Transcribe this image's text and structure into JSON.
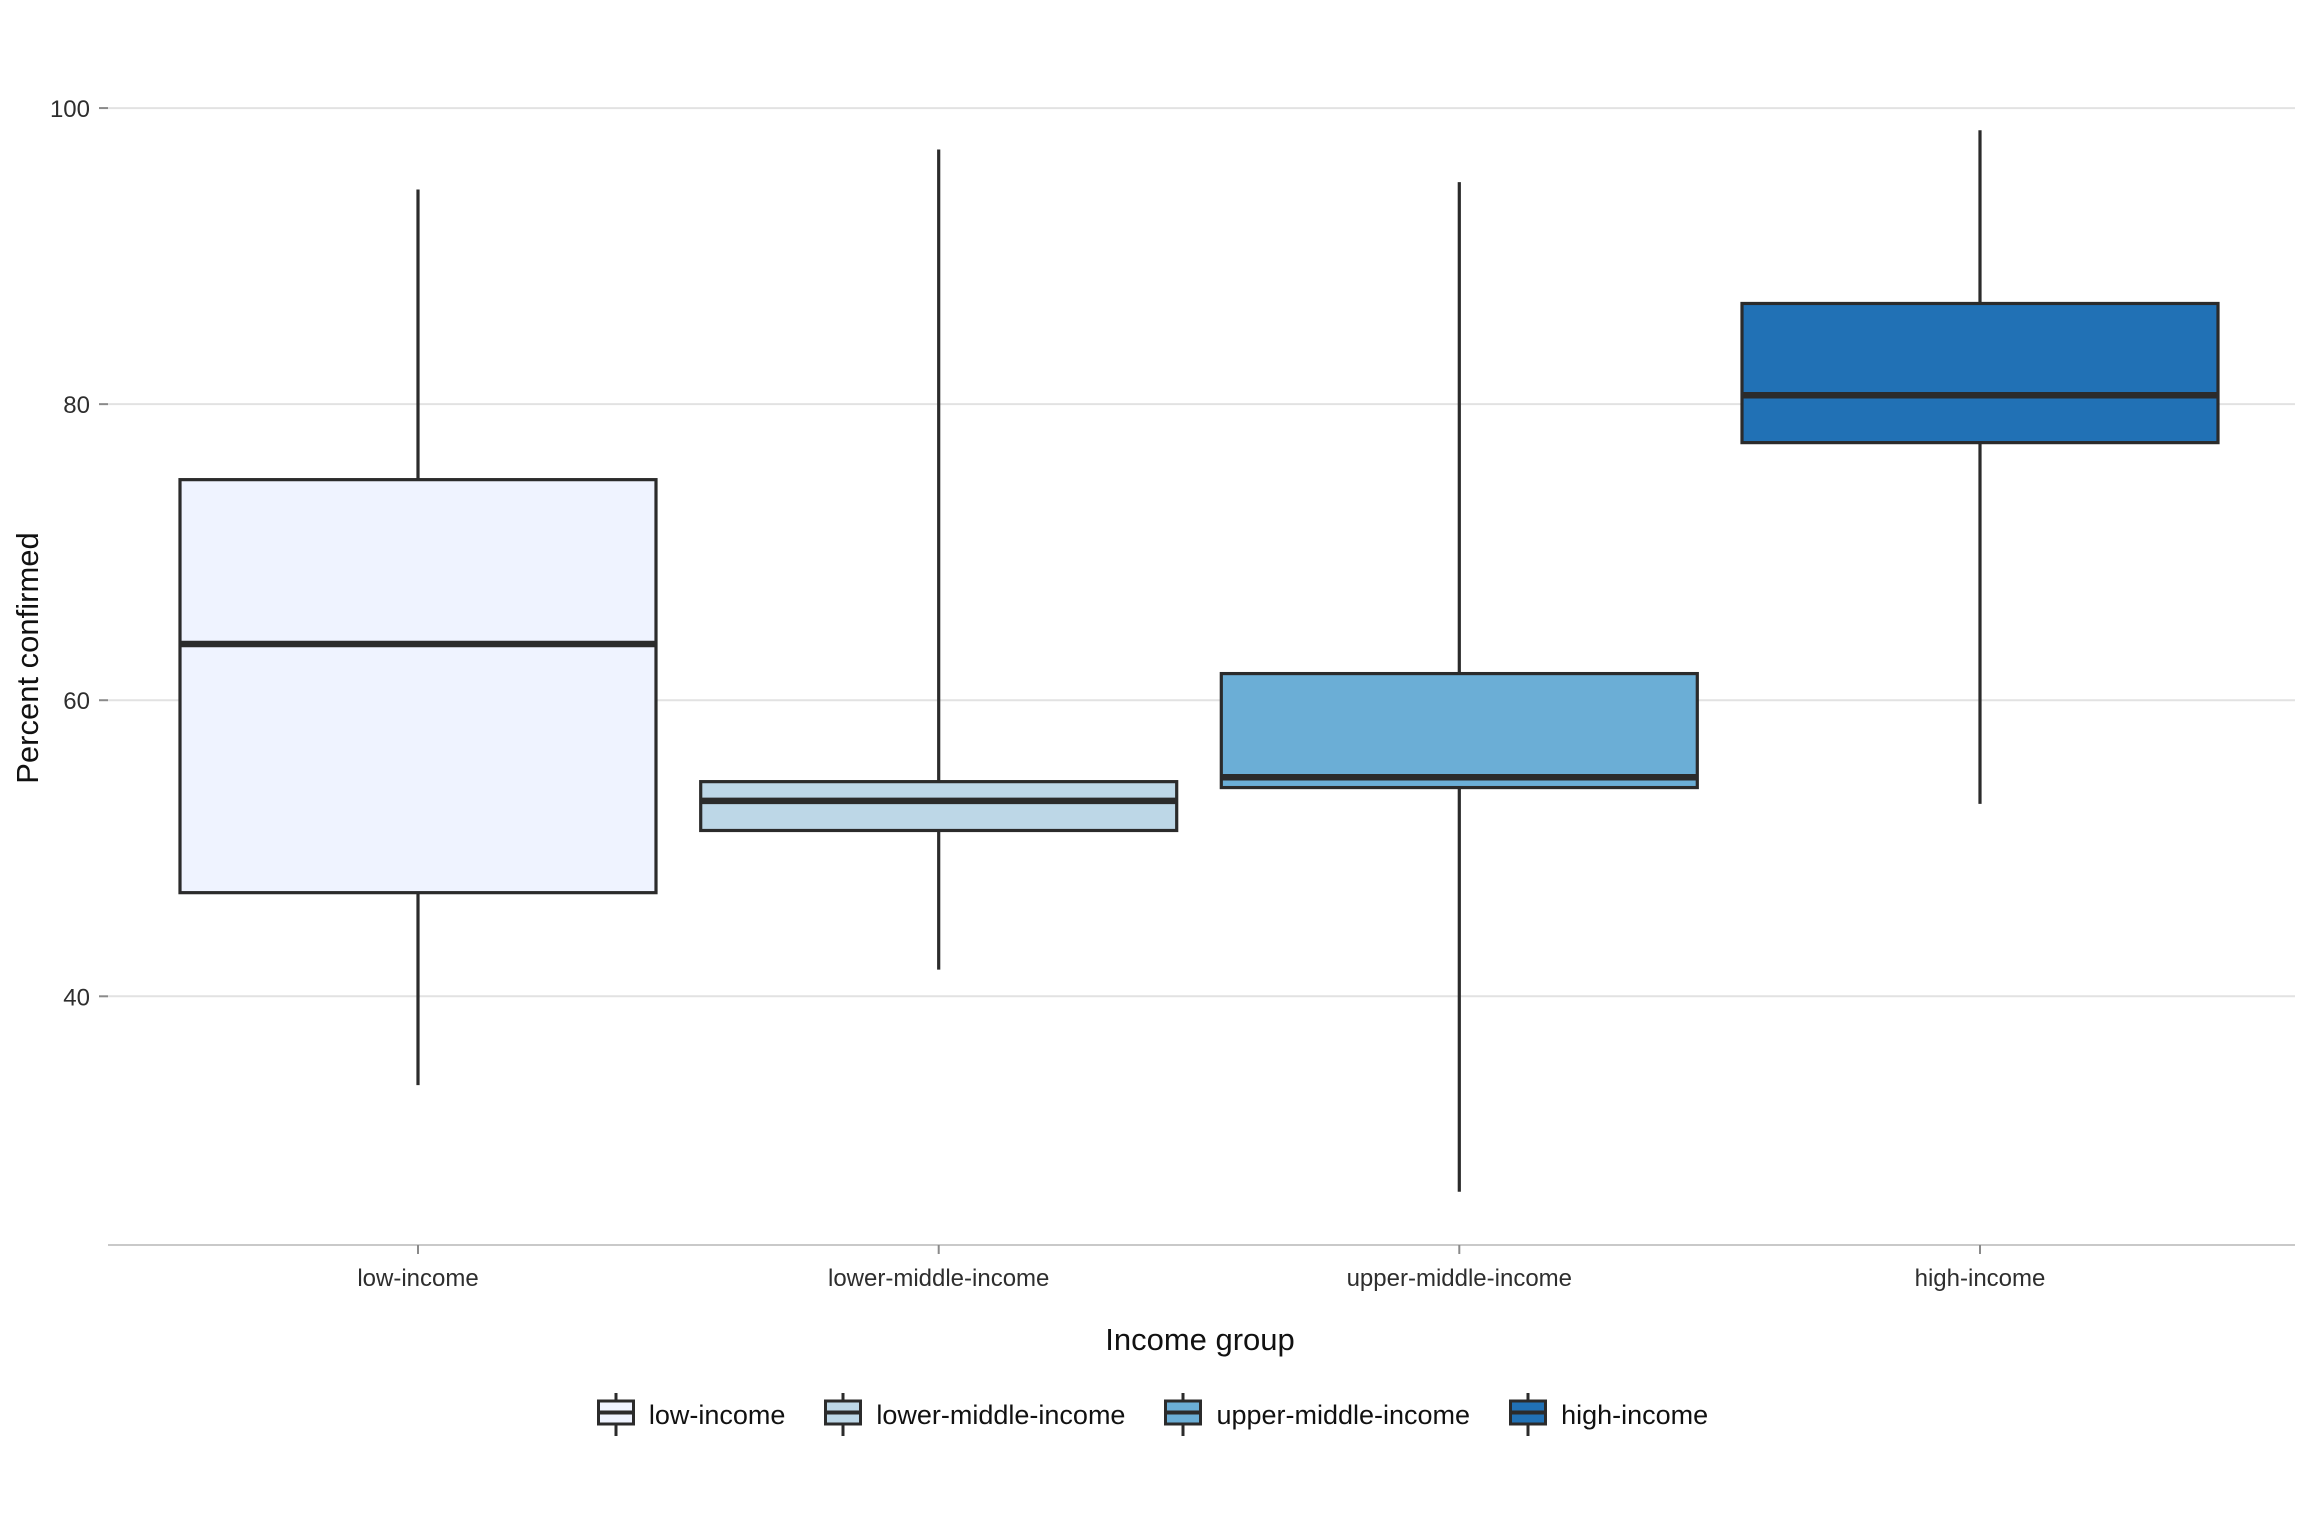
{
  "chart_data": {
    "type": "boxplot",
    "title": "",
    "xlabel": "Income group",
    "ylabel": "Percent confirmed",
    "categories": [
      "low-income",
      "lower-middle-income",
      "upper-middle-income",
      "high-income"
    ],
    "yticks": [
      40,
      60,
      80,
      100
    ],
    "ylim": [
      23.2,
      107.3
    ],
    "grid": "horizontal-major-only",
    "legend_position": "bottom",
    "series": [
      {
        "name": "low-income",
        "min": 34.0,
        "q1": 47.0,
        "median": 63.8,
        "q3": 74.9,
        "max": 94.5,
        "fill": "#EFF3FF"
      },
      {
        "name": "lower-middle-income",
        "min": 41.8,
        "q1": 51.2,
        "median": 53.2,
        "q3": 54.5,
        "max": 97.2,
        "fill": "#BDD7E7"
      },
      {
        "name": "upper-middle-income",
        "min": 26.8,
        "q1": 54.1,
        "median": 54.8,
        "q3": 61.8,
        "max": 95.0,
        "fill": "#6BAED6"
      },
      {
        "name": "high-income",
        "min": 53.0,
        "q1": 77.4,
        "median": 80.6,
        "q3": 86.8,
        "max": 98.5,
        "fill": "#2171B5"
      }
    ],
    "colors": {
      "box_border": "#2b2b2b",
      "median_line": "#2b2b2b",
      "whisker": "#2b2b2b",
      "gridline": "#e2e2e2",
      "axis_line": "#c9c9c9",
      "tick_mark": "#8a8a8a",
      "tick_label": "#2e2e2e",
      "axis_title": "#111111",
      "background": "#ffffff"
    }
  }
}
